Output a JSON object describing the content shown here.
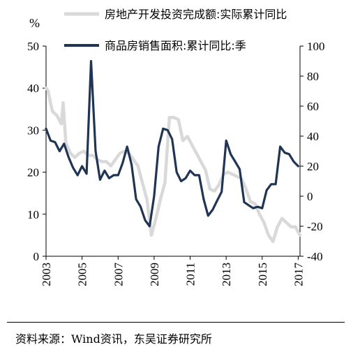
{
  "chart_data": {
    "type": "line",
    "left_unit": "%",
    "left_axis": {
      "ylim": [
        0,
        50
      ],
      "ticks": [
        "0",
        "10",
        "20",
        "30",
        "40",
        "50"
      ]
    },
    "right_axis": {
      "ylim": [
        -40,
        100
      ],
      "ticks": [
        "-40",
        "-20",
        "0",
        "20",
        "40",
        "60",
        "80",
        "100"
      ]
    },
    "x_ticks": [
      "2003",
      "2005",
      "2007",
      "2009",
      "2011",
      "2013",
      "2015",
      "2017"
    ],
    "xlim": [
      2003,
      2017.1
    ],
    "colors": {
      "series1": "#d9d9d9",
      "series2": "#1f3553"
    },
    "series": [
      {
        "name": "房地产开发投资完成额:实际累计同比",
        "axis": "left",
        "x": [
          2003.0,
          2003.1,
          2003.35,
          2003.6,
          2003.85,
          2003.95,
          2004.1,
          2004.35,
          2004.6,
          2004.85,
          2005.1,
          2005.35,
          2005.6,
          2005.85,
          2006.1,
          2006.35,
          2006.6,
          2006.85,
          2007.1,
          2007.35,
          2007.6,
          2007.85,
          2008.1,
          2008.35,
          2008.6,
          2008.85,
          2009.1,
          2009.35,
          2009.6,
          2009.85,
          2010.1,
          2010.35,
          2010.6,
          2010.85,
          2011.1,
          2011.35,
          2011.6,
          2011.85,
          2012.1,
          2012.35,
          2012.6,
          2012.85,
          2013.1,
          2013.35,
          2013.6,
          2013.85,
          2014.1,
          2014.35,
          2014.6,
          2014.85,
          2015.1,
          2015.35,
          2015.6,
          2015.85,
          2016.1,
          2016.35,
          2016.6,
          2016.85,
          2017.1
        ],
        "y": [
          40,
          39.5,
          34.5,
          33.5,
          31.5,
          36.5,
          27,
          24.5,
          23.5,
          24.5,
          25,
          24,
          24,
          23,
          22.5,
          22.5,
          21.5,
          23,
          24.5,
          25,
          24.5,
          23,
          21.5,
          17.5,
          13.5,
          5,
          9,
          13.5,
          17.5,
          33,
          33,
          32.5,
          27.5,
          28.5,
          26.5,
          24.5,
          22.5,
          20.5,
          16,
          15.5,
          17,
          19.5,
          20,
          19.5,
          19,
          18.5,
          16,
          13,
          12.5,
          10,
          8,
          5,
          3.5,
          7,
          9,
          8,
          7,
          7,
          5
        ]
      },
      {
        "name": "商品房销售面积:累计同比:季",
        "axis": "right",
        "x": [
          2003.0,
          2003.25,
          2003.5,
          2003.75,
          2004.0,
          2004.25,
          2004.5,
          2004.75,
          2005.0,
          2005.25,
          2005.5,
          2005.75,
          2006.0,
          2006.25,
          2006.5,
          2006.75,
          2007.0,
          2007.25,
          2007.5,
          2007.75,
          2008.0,
          2008.25,
          2008.5,
          2008.75,
          2009.0,
          2009.25,
          2009.5,
          2009.75,
          2010.0,
          2010.25,
          2010.5,
          2010.75,
          2011.0,
          2011.25,
          2011.5,
          2011.75,
          2012.0,
          2012.25,
          2012.5,
          2012.75,
          2013.0,
          2013.25,
          2013.5,
          2013.75,
          2014.0,
          2014.25,
          2014.5,
          2014.75,
          2015.0,
          2015.25,
          2015.5,
          2015.75,
          2016.0,
          2016.25,
          2016.5,
          2016.75,
          2017.0
        ],
        "y": [
          45,
          37,
          36,
          30,
          35,
          26,
          19,
          14,
          20,
          15,
          90,
          30,
          11,
          17,
          12,
          14,
          14,
          22,
          33,
          21,
          -2,
          -7,
          -16,
          -20,
          0,
          33,
          45,
          44,
          38,
          16,
          10,
          12,
          17,
          14,
          14,
          -2,
          -13,
          -9,
          -3,
          3,
          37,
          28,
          23,
          18,
          -4,
          -6,
          -8,
          -7,
          -8,
          4,
          8,
          8,
          33,
          29,
          28,
          23,
          20
        ]
      }
    ]
  },
  "source_note": "资料来源：Wind资讯，东吴证券研究所"
}
